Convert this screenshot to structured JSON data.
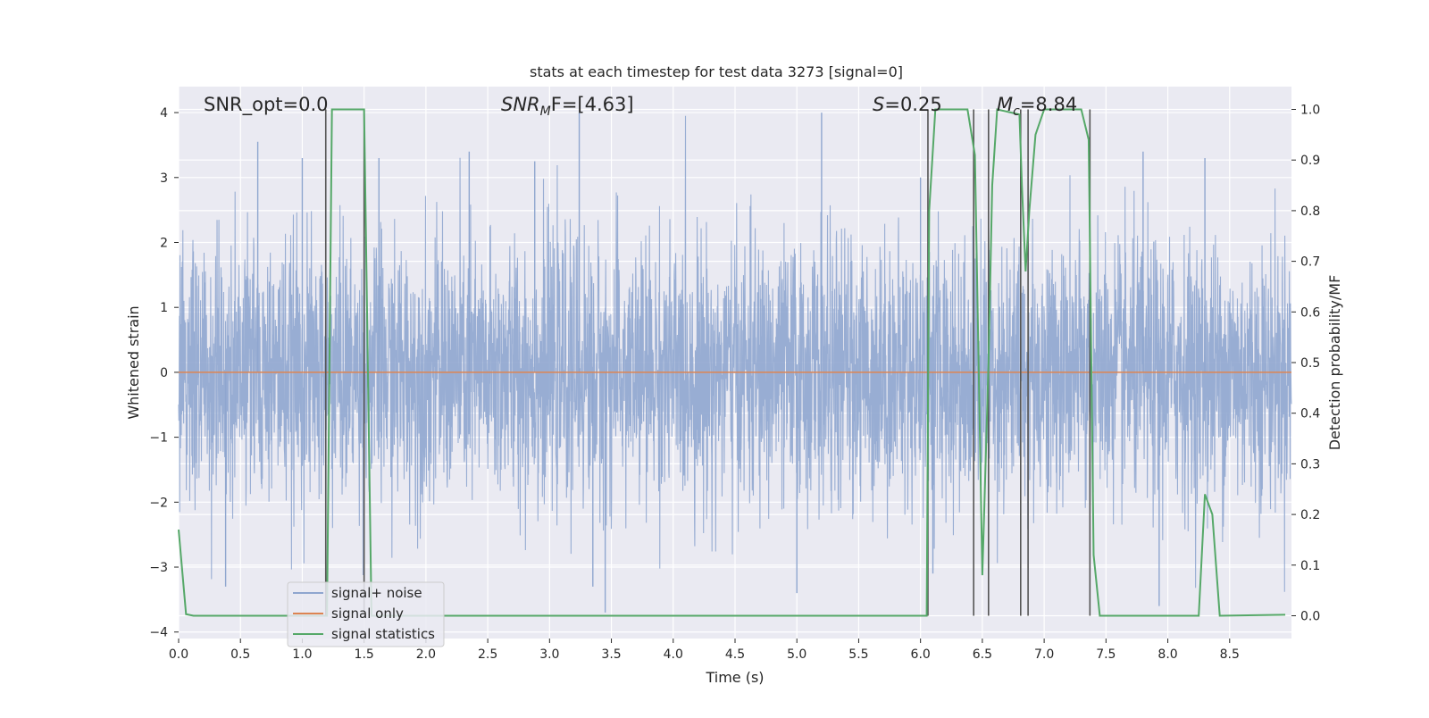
{
  "chart_data": {
    "type": "line",
    "title": "stats at each timestep for test data 3273 [signal=0]",
    "xlabel": "Time (s)",
    "ylabel": "Whitened strain",
    "y2label": "Detection probability/MF",
    "xlim": [
      0,
      9.0
    ],
    "ylim": [
      -4.1,
      4.4
    ],
    "y2lim": [
      -0.045,
      1.045
    ],
    "xticks": [
      "0.0",
      "0.5",
      "1.0",
      "1.5",
      "2.0",
      "2.5",
      "3.0",
      "3.5",
      "4.0",
      "4.5",
      "5.0",
      "5.5",
      "6.0",
      "6.5",
      "7.0",
      "7.5",
      "8.0",
      "8.5"
    ],
    "yticks": [
      "4",
      "3",
      "2",
      "1",
      "0",
      "−1",
      "−2",
      "−3",
      "−4"
    ],
    "y2ticks": [
      "1.0",
      "0.9",
      "0.8",
      "0.7",
      "0.6",
      "0.5",
      "0.4",
      "0.3",
      "0.2",
      "0.1",
      "0.0"
    ],
    "grid": true,
    "legend_position": "lower-left",
    "annotations": {
      "snr_opt": "SNR_opt=0.0",
      "snr_mf_main": "SNR",
      "snr_mf_sub": "M",
      "snr_mf_rest": "F=[4.63]",
      "s_main": "S",
      "s_rest": "=0.25",
      "mc_main": "M",
      "mc_sub": "c",
      "mc_rest": "=8.84"
    },
    "series": [
      {
        "name": "signal+ noise",
        "color": "#8fa6cf",
        "kind": "noise",
        "envelope_sigma": 1.0,
        "spikes": [
          {
            "x": 0.64,
            "y": 3.55
          },
          {
            "x": 1.0,
            "y": 3.3
          },
          {
            "x": 1.62,
            "y": 3.3
          },
          {
            "x": 2.35,
            "y": 3.4
          },
          {
            "x": 3.24,
            "y": 4.0
          },
          {
            "x": 3.45,
            "y": -3.7
          },
          {
            "x": 3.35,
            "y": -3.3
          },
          {
            "x": 5.2,
            "y": 4.0
          },
          {
            "x": 5.0,
            "y": -3.4
          },
          {
            "x": 0.38,
            "y": -3.3
          },
          {
            "x": 7.93,
            "y": -3.6
          },
          {
            "x": 6.0,
            "y": 3.0
          },
          {
            "x": 7.8,
            "y": 3.4
          },
          {
            "x": 8.3,
            "y": 3.3
          },
          {
            "x": 2.88,
            "y": 3.25
          },
          {
            "x": 6.1,
            "y": -3.1
          }
        ]
      },
      {
        "name": "signal only",
        "color": "#dd8452",
        "kind": "flat",
        "y": 0
      },
      {
        "name": "signal statistics",
        "color": "#55a868",
        "kind": "prob",
        "x": [
          0.0,
          0.06,
          0.12,
          1.18,
          1.2,
          1.24,
          1.5,
          1.56,
          6.05,
          6.07,
          6.12,
          6.38,
          6.44,
          6.5,
          6.55,
          6.58,
          6.62,
          6.8,
          6.82,
          6.85,
          6.88,
          6.93,
          7.0,
          7.3,
          7.36,
          7.4,
          7.45,
          8.25,
          8.3,
          8.36,
          8.42,
          8.95
        ],
        "y": [
          0.17,
          0.003,
          0.0,
          0.0,
          0.0,
          1.0,
          1.0,
          0.0,
          0.0,
          0.8,
          1.0,
          1.0,
          0.91,
          0.08,
          0.5,
          0.85,
          1.0,
          0.99,
          0.85,
          0.68,
          0.8,
          0.95,
          1.0,
          1.0,
          0.94,
          0.12,
          0.0,
          0.0,
          0.24,
          0.2,
          0.0,
          0.002
        ]
      }
    ],
    "vlines": [
      1.19,
      1.5,
      6.06,
      6.43,
      6.55,
      6.81,
      6.87,
      7.37
    ]
  }
}
